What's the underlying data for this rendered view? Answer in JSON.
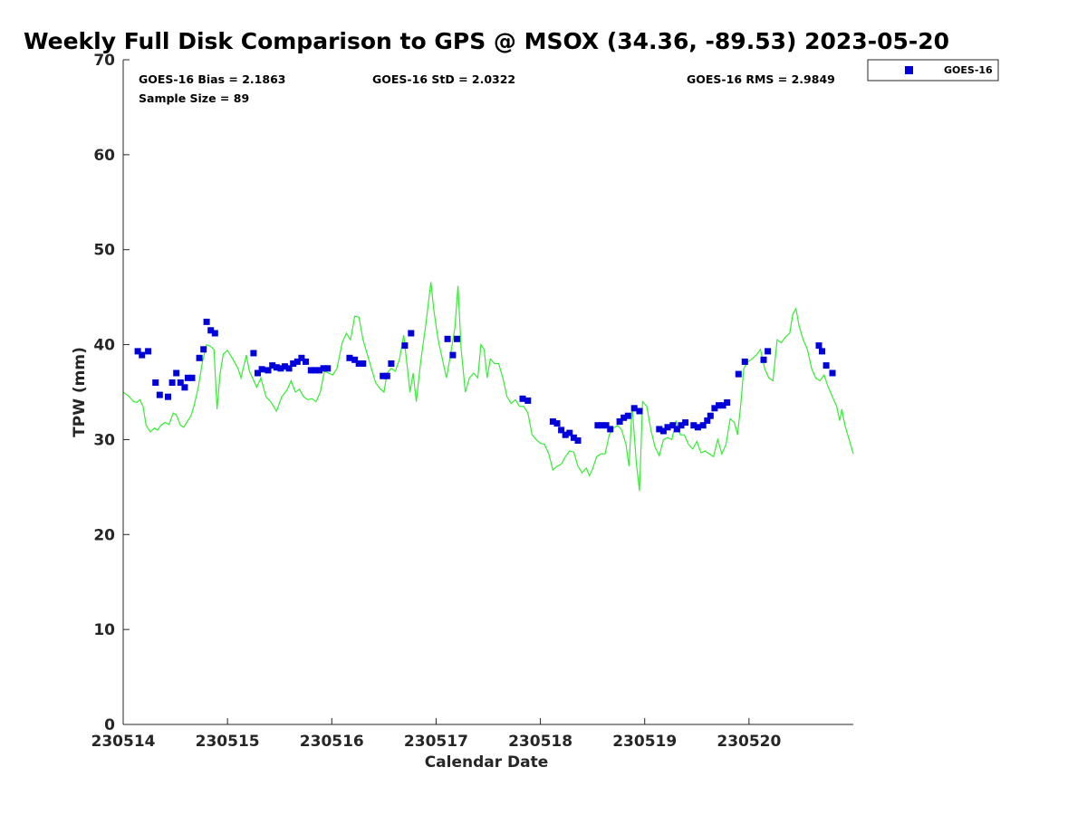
{
  "chart_data": {
    "type": "scatter",
    "title": "Weekly Full Disk Comparison to GPS @ MSOX (34.36, -89.53) 2023-05-20",
    "xlabel": "Calendar Date",
    "ylabel": "TPW (mm)",
    "xlim": [
      0,
      7
    ],
    "ylim": [
      0,
      70
    ],
    "x_ticks": [
      {
        "value": 0,
        "label": "230514"
      },
      {
        "value": 1,
        "label": "230515"
      },
      {
        "value": 2,
        "label": "230516"
      },
      {
        "value": 3,
        "label": "230517"
      },
      {
        "value": 4,
        "label": "230518"
      },
      {
        "value": 5,
        "label": "230519"
      },
      {
        "value": 6,
        "label": "230520"
      }
    ],
    "y_ticks": [
      0,
      10,
      20,
      30,
      40,
      50,
      60,
      70
    ],
    "grid": false,
    "legend_position": "top-right, outside",
    "stats": {
      "bias": "GOES-16 Bias = 2.1863",
      "std": "GOES-16 StD = 2.0322",
      "rms": "GOES-16 RMS = 2.9849",
      "sample_size": "Sample Size = 89"
    },
    "series": [
      {
        "name": "GOES-16",
        "kind": "scatter",
        "marker": "square",
        "color": "#0000dd",
        "points": [
          [
            0.14,
            39.3
          ],
          [
            0.18,
            38.9
          ],
          [
            0.24,
            39.3
          ],
          [
            0.31,
            36.0
          ],
          [
            0.35,
            34.7
          ],
          [
            0.43,
            34.5
          ],
          [
            0.47,
            36.0
          ],
          [
            0.51,
            37.0
          ],
          [
            0.55,
            36.0
          ],
          [
            0.59,
            35.5
          ],
          [
            0.62,
            36.5
          ],
          [
            0.66,
            36.5
          ],
          [
            0.73,
            38.6
          ],
          [
            0.77,
            39.5
          ],
          [
            0.8,
            42.4
          ],
          [
            0.84,
            41.5
          ],
          [
            0.88,
            41.2
          ],
          [
            1.25,
            39.1
          ],
          [
            1.29,
            37.0
          ],
          [
            1.33,
            37.4
          ],
          [
            1.39,
            37.3
          ],
          [
            1.43,
            37.8
          ],
          [
            1.47,
            37.6
          ],
          [
            1.51,
            37.5
          ],
          [
            1.55,
            37.7
          ],
          [
            1.59,
            37.5
          ],
          [
            1.63,
            38.0
          ],
          [
            1.67,
            38.2
          ],
          [
            1.71,
            38.6
          ],
          [
            1.75,
            38.2
          ],
          [
            1.8,
            37.3
          ],
          [
            1.84,
            37.3
          ],
          [
            1.88,
            37.3
          ],
          [
            1.92,
            37.5
          ],
          [
            1.96,
            37.5
          ],
          [
            2.17,
            38.6
          ],
          [
            2.22,
            38.4
          ],
          [
            2.26,
            38.0
          ],
          [
            2.3,
            38.0
          ],
          [
            2.49,
            36.7
          ],
          [
            2.53,
            36.7
          ],
          [
            2.57,
            38.0
          ],
          [
            2.7,
            39.9
          ],
          [
            2.76,
            41.2
          ],
          [
            3.11,
            40.6
          ],
          [
            3.16,
            38.9
          ],
          [
            3.2,
            40.6
          ],
          [
            3.83,
            34.3
          ],
          [
            3.88,
            34.1
          ],
          [
            4.12,
            31.9
          ],
          [
            4.16,
            31.7
          ],
          [
            4.2,
            31.0
          ],
          [
            4.24,
            30.5
          ],
          [
            4.28,
            30.7
          ],
          [
            4.32,
            30.2
          ],
          [
            4.36,
            29.9
          ],
          [
            4.55,
            31.5
          ],
          [
            4.59,
            31.5
          ],
          [
            4.63,
            31.5
          ],
          [
            4.67,
            31.1
          ],
          [
            4.76,
            31.9
          ],
          [
            4.8,
            32.3
          ],
          [
            4.84,
            32.5
          ],
          [
            4.9,
            33.3
          ],
          [
            4.95,
            33.0
          ],
          [
            5.14,
            31.1
          ],
          [
            5.18,
            30.9
          ],
          [
            5.22,
            31.3
          ],
          [
            5.27,
            31.5
          ],
          [
            5.31,
            31.1
          ],
          [
            5.35,
            31.5
          ],
          [
            5.39,
            31.8
          ],
          [
            5.47,
            31.5
          ],
          [
            5.51,
            31.3
          ],
          [
            5.56,
            31.5
          ],
          [
            5.6,
            32.0
          ],
          [
            5.63,
            32.5
          ],
          [
            5.67,
            33.3
          ],
          [
            5.71,
            33.6
          ],
          [
            5.75,
            33.6
          ],
          [
            5.79,
            33.9
          ],
          [
            5.9,
            36.9
          ],
          [
            5.96,
            38.2
          ],
          [
            6.14,
            38.4
          ],
          [
            6.18,
            39.3
          ],
          [
            6.67,
            39.9
          ],
          [
            6.7,
            39.3
          ],
          [
            6.74,
            37.8
          ],
          [
            6.8,
            37.0
          ]
        ]
      },
      {
        "name": "",
        "kind": "line",
        "color": "#33ee33",
        "points": [
          [
            0.0,
            35.0
          ],
          [
            0.05,
            34.6
          ],
          [
            0.1,
            34.0
          ],
          [
            0.13,
            33.9
          ],
          [
            0.16,
            34.2
          ],
          [
            0.19,
            33.5
          ],
          [
            0.22,
            31.5
          ],
          [
            0.26,
            30.8
          ],
          [
            0.3,
            31.2
          ],
          [
            0.33,
            31.0
          ],
          [
            0.36,
            31.5
          ],
          [
            0.4,
            31.8
          ],
          [
            0.44,
            31.6
          ],
          [
            0.48,
            32.8
          ],
          [
            0.51,
            32.6
          ],
          [
            0.55,
            31.5
          ],
          [
            0.58,
            31.3
          ],
          [
            0.62,
            32.0
          ],
          [
            0.65,
            32.5
          ],
          [
            0.68,
            33.6
          ],
          [
            0.72,
            35.5
          ],
          [
            0.76,
            38.2
          ],
          [
            0.8,
            40.0
          ],
          [
            0.84,
            39.8
          ],
          [
            0.87,
            39.5
          ],
          [
            0.9,
            33.2
          ],
          [
            0.93,
            37.0
          ],
          [
            0.96,
            39.0
          ],
          [
            1.0,
            39.4
          ],
          [
            1.05,
            38.5
          ],
          [
            1.1,
            37.5
          ],
          [
            1.13,
            36.5
          ],
          [
            1.18,
            38.9
          ],
          [
            1.21,
            37.2
          ],
          [
            1.24,
            36.5
          ],
          [
            1.28,
            35.5
          ],
          [
            1.32,
            36.5
          ],
          [
            1.37,
            34.5
          ],
          [
            1.42,
            33.9
          ],
          [
            1.47,
            33.0
          ],
          [
            1.52,
            34.5
          ],
          [
            1.57,
            35.2
          ],
          [
            1.61,
            36.2
          ],
          [
            1.65,
            35.0
          ],
          [
            1.69,
            35.3
          ],
          [
            1.73,
            34.5
          ],
          [
            1.77,
            34.2
          ],
          [
            1.81,
            34.3
          ],
          [
            1.85,
            34.0
          ],
          [
            1.89,
            35.0
          ],
          [
            1.93,
            37.2
          ],
          [
            1.97,
            37.0
          ],
          [
            2.01,
            36.8
          ],
          [
            2.05,
            37.5
          ],
          [
            2.1,
            40.2
          ],
          [
            2.14,
            41.2
          ],
          [
            2.18,
            40.5
          ],
          [
            2.22,
            43.0
          ],
          [
            2.26,
            42.9
          ],
          [
            2.3,
            40.5
          ],
          [
            2.34,
            39.0
          ],
          [
            2.38,
            37.5
          ],
          [
            2.42,
            36.0
          ],
          [
            2.46,
            35.4
          ],
          [
            2.5,
            35.0
          ],
          [
            2.53,
            37.0
          ],
          [
            2.57,
            37.5
          ],
          [
            2.61,
            37.2
          ],
          [
            2.65,
            38.5
          ],
          [
            2.69,
            41.0
          ],
          [
            2.72,
            38.0
          ],
          [
            2.75,
            35.0
          ],
          [
            2.78,
            37.0
          ],
          [
            2.81,
            34.0
          ],
          [
            2.85,
            38.0
          ],
          [
            2.9,
            42.0
          ],
          [
            2.95,
            46.6
          ],
          [
            2.98,
            43.5
          ],
          [
            3.02,
            40.5
          ],
          [
            3.06,
            38.5
          ],
          [
            3.1,
            36.5
          ],
          [
            3.14,
            39.0
          ],
          [
            3.18,
            41.8
          ],
          [
            3.21,
            46.2
          ],
          [
            3.24,
            39.5
          ],
          [
            3.28,
            35.0
          ],
          [
            3.32,
            36.5
          ],
          [
            3.36,
            37.0
          ],
          [
            3.4,
            36.5
          ],
          [
            3.43,
            40.0
          ],
          [
            3.46,
            39.5
          ],
          [
            3.49,
            36.5
          ],
          [
            3.52,
            38.5
          ],
          [
            3.56,
            38.0
          ],
          [
            3.6,
            38.0
          ],
          [
            3.64,
            36.5
          ],
          [
            3.68,
            34.5
          ],
          [
            3.72,
            33.8
          ],
          [
            3.76,
            34.2
          ],
          [
            3.8,
            33.5
          ],
          [
            3.84,
            33.5
          ],
          [
            3.88,
            32.8
          ],
          [
            3.92,
            30.5
          ],
          [
            3.96,
            30.0
          ],
          [
            4.0,
            29.6
          ],
          [
            4.04,
            29.5
          ],
          [
            4.08,
            28.5
          ],
          [
            4.12,
            26.8
          ],
          [
            4.16,
            27.2
          ],
          [
            4.2,
            27.4
          ],
          [
            4.24,
            28.2
          ],
          [
            4.28,
            28.8
          ],
          [
            4.32,
            28.7
          ],
          [
            4.36,
            27.2
          ],
          [
            4.4,
            26.5
          ],
          [
            4.44,
            27.0
          ],
          [
            4.47,
            26.2
          ],
          [
            4.5,
            26.9
          ],
          [
            4.54,
            28.2
          ],
          [
            4.58,
            28.5
          ],
          [
            4.62,
            28.5
          ],
          [
            4.66,
            30.5
          ],
          [
            4.7,
            31.2
          ],
          [
            4.74,
            31.5
          ],
          [
            4.78,
            31.0
          ],
          [
            4.82,
            29.5
          ],
          [
            4.85,
            27.2
          ],
          [
            4.88,
            33.5
          ],
          [
            4.92,
            27.5
          ],
          [
            4.95,
            24.6
          ],
          [
            4.98,
            34.0
          ],
          [
            5.02,
            33.5
          ],
          [
            5.06,
            31.0
          ],
          [
            5.1,
            29.2
          ],
          [
            5.14,
            28.3
          ],
          [
            5.18,
            30.0
          ],
          [
            5.22,
            30.2
          ],
          [
            5.26,
            30.0
          ],
          [
            5.3,
            32.0
          ],
          [
            5.34,
            30.5
          ],
          [
            5.38,
            30.5
          ],
          [
            5.42,
            29.5
          ],
          [
            5.46,
            29.0
          ],
          [
            5.5,
            29.8
          ],
          [
            5.54,
            28.6
          ],
          [
            5.58,
            28.8
          ],
          [
            5.62,
            28.5
          ],
          [
            5.66,
            28.2
          ],
          [
            5.7,
            30.0
          ],
          [
            5.74,
            28.5
          ],
          [
            5.78,
            29.5
          ],
          [
            5.82,
            32.2
          ],
          [
            5.86,
            31.8
          ],
          [
            5.89,
            30.5
          ],
          [
            5.92,
            33.5
          ],
          [
            5.95,
            37.5
          ],
          [
            5.99,
            38.2
          ],
          [
            6.03,
            38.5
          ],
          [
            6.07,
            38.9
          ],
          [
            6.11,
            39.5
          ],
          [
            6.15,
            37.5
          ],
          [
            6.19,
            36.5
          ],
          [
            6.23,
            36.2
          ],
          [
            6.27,
            40.5
          ],
          [
            6.31,
            40.2
          ],
          [
            6.35,
            40.8
          ],
          [
            6.39,
            41.2
          ],
          [
            6.42,
            43.2
          ],
          [
            6.45,
            43.8
          ],
          [
            6.48,
            42.0
          ],
          [
            6.52,
            40.5
          ],
          [
            6.56,
            39.5
          ],
          [
            6.6,
            37.5
          ],
          [
            6.64,
            36.5
          ],
          [
            6.68,
            36.2
          ],
          [
            6.72,
            36.8
          ],
          [
            6.76,
            35.5
          ],
          [
            6.8,
            34.5
          ],
          [
            6.84,
            33.5
          ],
          [
            6.87,
            32.0
          ],
          [
            6.89,
            33.2
          ],
          [
            6.92,
            31.5
          ],
          [
            6.96,
            30.0
          ],
          [
            7.0,
            28.5
          ]
        ]
      }
    ]
  }
}
